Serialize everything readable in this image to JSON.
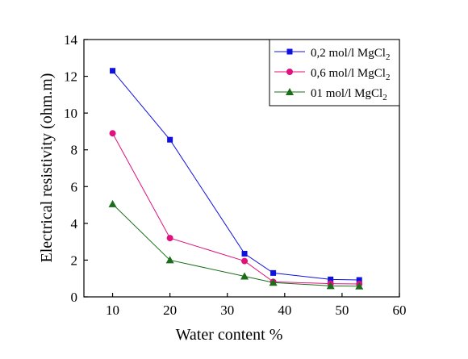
{
  "chart_data": {
    "type": "line",
    "xlabel": "Water content %",
    "ylabel": "Electrical resistivity (ohm.m)",
    "xlim": [
      5,
      60
    ],
    "ylim": [
      0,
      14
    ],
    "x_ticks": [
      10,
      20,
      30,
      40,
      50,
      60
    ],
    "y_ticks": [
      0,
      2,
      4,
      6,
      8,
      10,
      12,
      14
    ],
    "x": [
      10,
      20,
      33,
      38,
      48,
      53
    ],
    "legend_position": "top-right",
    "series": [
      {
        "name": "0,2 mol/l MgCl",
        "name_sub": "2",
        "color": "#1010e0",
        "marker": "square",
        "values": [
          12.3,
          8.55,
          2.35,
          1.3,
          0.95,
          0.92
        ]
      },
      {
        "name": "0,6 mol/l MgCl",
        "name_sub": "2",
        "color": "#e0117f",
        "marker": "circle",
        "values": [
          8.9,
          3.2,
          1.95,
          0.82,
          0.72,
          0.7
        ]
      },
      {
        "name": "01 mol/l MgCl",
        "name_sub": "2",
        "color": "#1a6e1a",
        "marker": "triangle",
        "values": [
          5.05,
          2.0,
          1.12,
          0.78,
          0.6,
          0.58
        ]
      }
    ]
  }
}
